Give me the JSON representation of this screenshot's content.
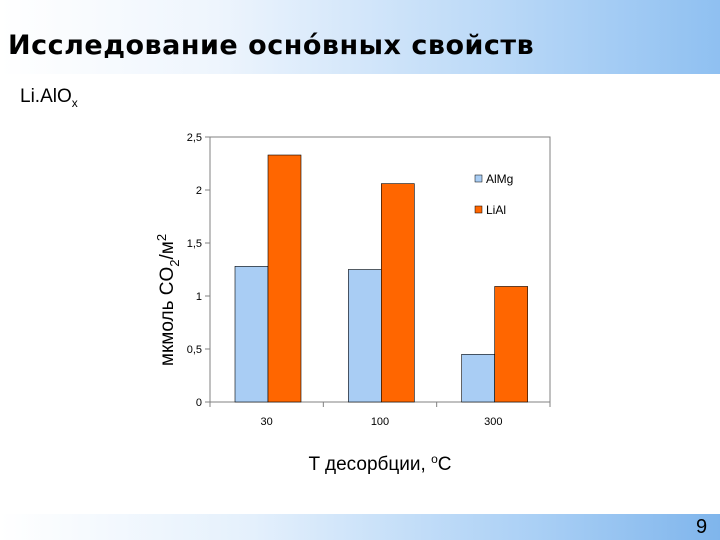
{
  "slide": {
    "title": "Исследование осно́вных свойств",
    "subtitle_main": "Li.AlO",
    "subtitle_sub": "x",
    "page_number": "9"
  },
  "colors": {
    "AlMg": "#a9cdf4",
    "LiAl": "#ff6600"
  },
  "chart_data": {
    "type": "bar",
    "categories": [
      "30",
      "100",
      "300"
    ],
    "series": [
      {
        "name": "AlMg",
        "values": [
          1.28,
          1.25,
          0.45
        ]
      },
      {
        "name": "LiAl",
        "values": [
          2.33,
          2.06,
          1.09
        ]
      }
    ],
    "ylim": [
      0,
      2.5
    ],
    "yticks": [
      "0",
      "0,5",
      "1",
      "1,5",
      "2",
      "2,5"
    ],
    "ytick_values": [
      0,
      0.5,
      1,
      1.5,
      2,
      2.5
    ],
    "ylabel": {
      "pre": "мкмоль CO",
      "sub": "2",
      "mid": "/м",
      "sup": "2"
    },
    "xlabel": {
      "pre": "T десорбции, ",
      "sup": "o",
      "post": "C"
    },
    "legend_position": "right",
    "grid": false
  }
}
